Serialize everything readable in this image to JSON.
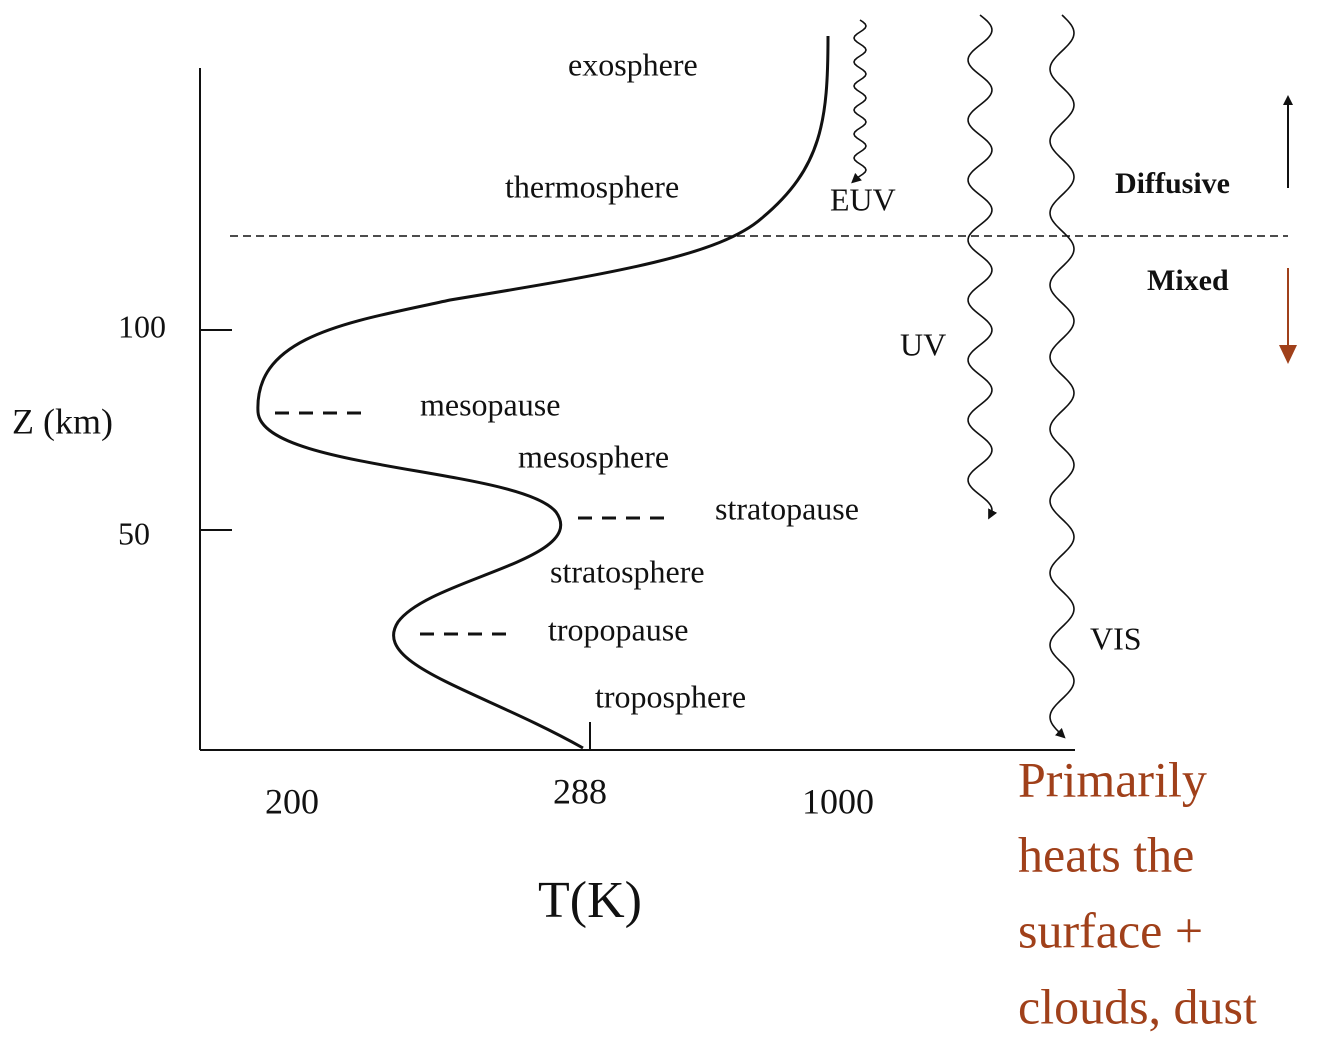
{
  "axes": {
    "y_label": "Z (km)",
    "x_label": "T(K)",
    "y_ticks": [
      "100",
      "50"
    ],
    "x_ticks": [
      "200",
      "288",
      "1000"
    ]
  },
  "layers": [
    "exosphere",
    "thermosphere",
    "mesopause",
    "mesosphere",
    "stratopause",
    "stratosphere",
    "tropopause",
    "troposphere"
  ],
  "radiation": [
    "EUV",
    "UV",
    "VIS"
  ],
  "regimes": [
    "Diffusive",
    "Mixed"
  ],
  "note": [
    "Primarily",
    "heats the",
    "surface +",
    "clouds, dust"
  ]
}
